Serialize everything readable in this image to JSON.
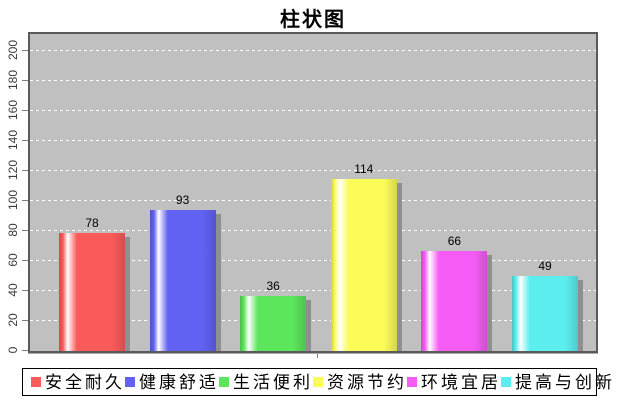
{
  "title": "柱状图",
  "chart_data": {
    "type": "bar",
    "title": "柱状图",
    "categories": [
      ""
    ],
    "series": [
      {
        "name": "安全耐久",
        "value": 78,
        "color": "#FB5A5A"
      },
      {
        "name": "健康舒适",
        "value": 93,
        "color": "#6262F2"
      },
      {
        "name": "生活便利",
        "value": 36,
        "color": "#5CE65C"
      },
      {
        "name": "资源节约",
        "value": 114,
        "color": "#FCFC58"
      },
      {
        "name": "环境宜居",
        "value": 66,
        "color": "#F55CF5"
      },
      {
        "name": "提高与创新",
        "value": 49,
        "color": "#5CEEEE"
      }
    ],
    "xlabel": "",
    "ylabel": "",
    "ylim": [
      0,
      200
    ],
    "yticks": [
      0,
      20,
      40,
      60,
      80,
      100,
      120,
      140,
      160,
      180,
      200
    ],
    "ytick_labels_rotated": true,
    "grid": "horizontal white dashed",
    "plot_background": "#C0C0C0",
    "bar_shadow_color": "#8F8F8F",
    "value_label_color": "#000000",
    "legend_position": "bottom"
  }
}
